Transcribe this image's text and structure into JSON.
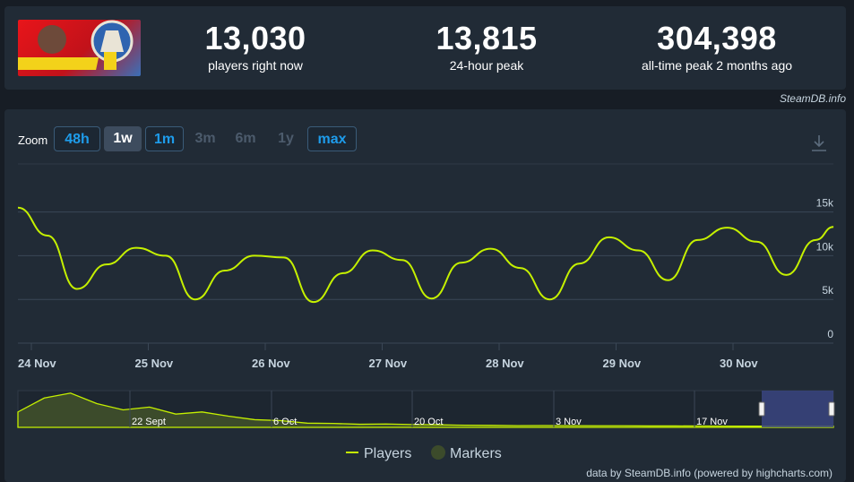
{
  "stats": {
    "players_now": {
      "value": "13,030",
      "label": "players right now"
    },
    "peak_24h": {
      "value": "13,815",
      "label": "24-hour peak"
    },
    "alltime": {
      "value": "304,398",
      "label": "all-time peak 2 months ago"
    }
  },
  "credit_top": "SteamDB.info",
  "zoom": {
    "label": "Zoom",
    "buttons": [
      {
        "label": "48h",
        "state": "on"
      },
      {
        "label": "1w",
        "state": "sel"
      },
      {
        "label": "1m",
        "state": "on"
      },
      {
        "label": "3m",
        "state": "off"
      },
      {
        "label": "6m",
        "state": "off"
      },
      {
        "label": "1y",
        "state": "off"
      },
      {
        "label": "max",
        "state": "on"
      }
    ]
  },
  "legend": {
    "players": "Players",
    "markers": "Markers"
  },
  "footer": "data by SteamDB.info (powered by highcharts.com)",
  "colors": {
    "line": "#c5f000",
    "marker": "#3c4b2b",
    "navigator_sel": "#3a4580",
    "bg": "#212b36"
  },
  "chart_data": {
    "type": "line",
    "series": [
      {
        "name": "Players",
        "x": [
          0,
          0.25,
          0.5,
          0.75,
          1,
          1.25,
          1.5,
          1.75,
          2,
          2.25,
          2.5,
          2.75,
          3,
          3.25,
          3.5,
          3.75,
          4,
          4.25,
          4.5,
          4.75,
          5,
          5.25,
          5.5,
          5.75,
          6,
          6.25,
          6.5,
          6.75,
          6.9
        ],
        "values": [
          15500,
          12300,
          6200,
          9000,
          10900,
          10000,
          5000,
          8300,
          10000,
          9800,
          4700,
          8000,
          10600,
          9500,
          5100,
          9200,
          10800,
          8600,
          5000,
          9100,
          12100,
          10600,
          7200,
          11800,
          13200,
          11600,
          7800,
          11800,
          13300
        ]
      }
    ],
    "categories": [
      "24 Nov",
      "25 Nov",
      "26 Nov",
      "27 Nov",
      "28 Nov",
      "29 Nov",
      "30 Nov"
    ],
    "yticks": [
      "0",
      "5k",
      "10k",
      "15k"
    ],
    "ylim": [
      0,
      16000
    ],
    "navigator_labels": [
      "22 Sept",
      "6 Oct",
      "20 Oct",
      "3 Nov",
      "17 Nov"
    ],
    "navigator_values": [
      110000,
      210000,
      245000,
      170000,
      125000,
      145000,
      95000,
      110000,
      80000,
      55000,
      48000,
      30000,
      28000,
      22000,
      24000,
      20000,
      18000,
      15000,
      14000,
      12000,
      13000,
      12000,
      11000,
      11000,
      10000,
      10000,
      9500,
      9000,
      8500,
      8000,
      8000,
      8000
    ]
  }
}
